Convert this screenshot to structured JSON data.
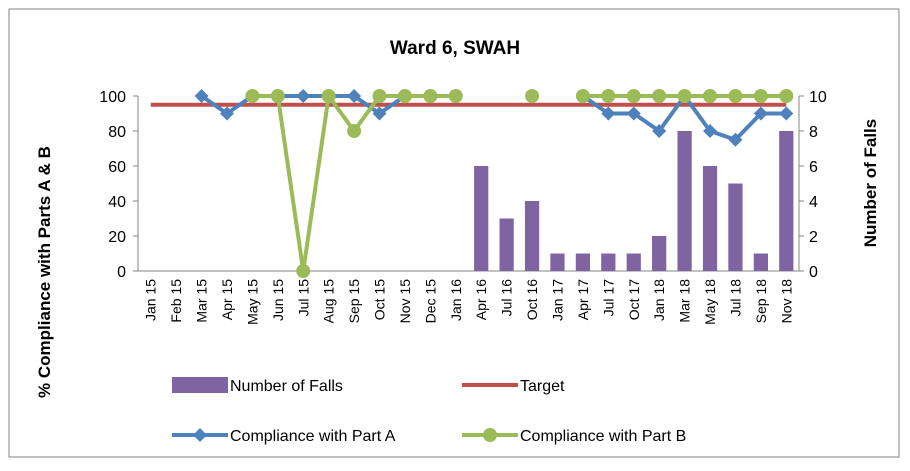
{
  "chart_data": {
    "type": "combo",
    "title": "Ward 6, SWAH",
    "y_label": "% Compliance with Parts A & B",
    "y2_label": "Number of Falls",
    "categories": [
      "Jan 15",
      "Feb 15",
      "Mar 15",
      "Apr 15",
      "May 15",
      "Jun 15",
      "Jul 15",
      "Aug 15",
      "Sep 15",
      "Oct 15",
      "Nov 15",
      "Dec 15",
      "Jan 16",
      "Apr 16",
      "Jul 16",
      "Oct 16",
      "Jan 17",
      "Apr 17",
      "Jul 17",
      "Oct 17",
      "Jan 18",
      "Mar 18",
      "May 18",
      "Jul 18",
      "Sep 18",
      "Nov 18"
    ],
    "series": [
      {
        "name": "Number of Falls",
        "kind": "bar",
        "axis": "y2",
        "color": "#8064a2",
        "values": [
          null,
          null,
          null,
          null,
          null,
          null,
          null,
          null,
          null,
          null,
          null,
          null,
          null,
          6,
          3,
          4,
          1,
          1,
          1,
          1,
          2,
          8,
          6,
          5,
          1,
          8
        ]
      },
      {
        "name": "Target",
        "kind": "line",
        "color": "#c0504d",
        "values": [
          95,
          95,
          95,
          95,
          95,
          95,
          95,
          95,
          95,
          95,
          95,
          95,
          95,
          95,
          95,
          95,
          95,
          95,
          95,
          95,
          95,
          95,
          95,
          95,
          95,
          95
        ]
      },
      {
        "name": "Compliance with Part A",
        "kind": "line",
        "marker": "diamond",
        "color": "#4f81bd",
        "values": [
          null,
          null,
          100,
          90,
          100,
          100,
          100,
          100,
          100,
          90,
          100,
          100,
          100,
          null,
          null,
          null,
          null,
          100,
          90,
          90,
          80,
          100,
          80,
          75,
          90,
          90
        ]
      },
      {
        "name": "Compliance with Part B",
        "kind": "line",
        "marker": "circle",
        "color": "#9bbb59",
        "values": [
          null,
          null,
          null,
          null,
          100,
          100,
          0,
          100,
          80,
          100,
          100,
          100,
          100,
          null,
          null,
          100,
          null,
          100,
          100,
          100,
          100,
          100,
          100,
          100,
          100,
          100
        ]
      }
    ],
    "ylim": [
      0,
      100
    ],
    "yticks": [
      0,
      20,
      40,
      60,
      80,
      100
    ],
    "y2lim": [
      0,
      10
    ],
    "y2ticks": [
      0,
      2,
      4,
      6,
      8,
      10
    ]
  }
}
